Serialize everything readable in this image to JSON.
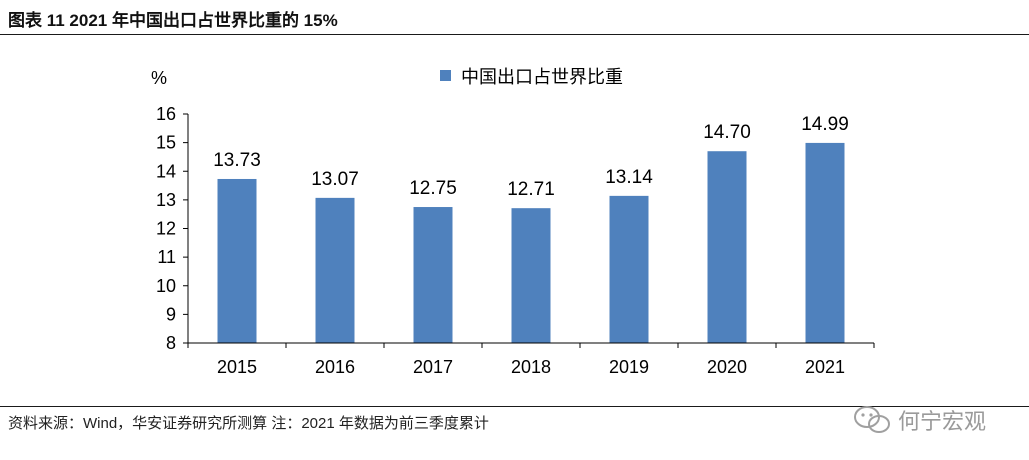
{
  "figure": {
    "title": "图表 11 2021 年中国出口占世界比重的 15%",
    "source": "资料来源：Wind，华安证券研究所测算  注：2021 年数据为前三季度累计",
    "watermark": "何宁宏观"
  },
  "chart_data": {
    "type": "bar",
    "title": "",
    "ylabel": "%",
    "xlabel": "",
    "ylim": [
      8,
      16
    ],
    "yticks": [
      8,
      9,
      10,
      11,
      12,
      13,
      14,
      15,
      16
    ],
    "categories": [
      "2015",
      "2016",
      "2017",
      "2018",
      "2019",
      "2020",
      "2021"
    ],
    "series": [
      {
        "name": "中国出口占世界比重",
        "values": [
          13.73,
          13.07,
          12.75,
          12.71,
          13.14,
          14.7,
          14.99
        ],
        "labels": [
          "13.73",
          "13.07",
          "12.75",
          "12.71",
          "13.14",
          "14.70",
          "14.99"
        ],
        "color": "#4f81bd"
      }
    ],
    "legend": "top-center",
    "grid": false
  }
}
